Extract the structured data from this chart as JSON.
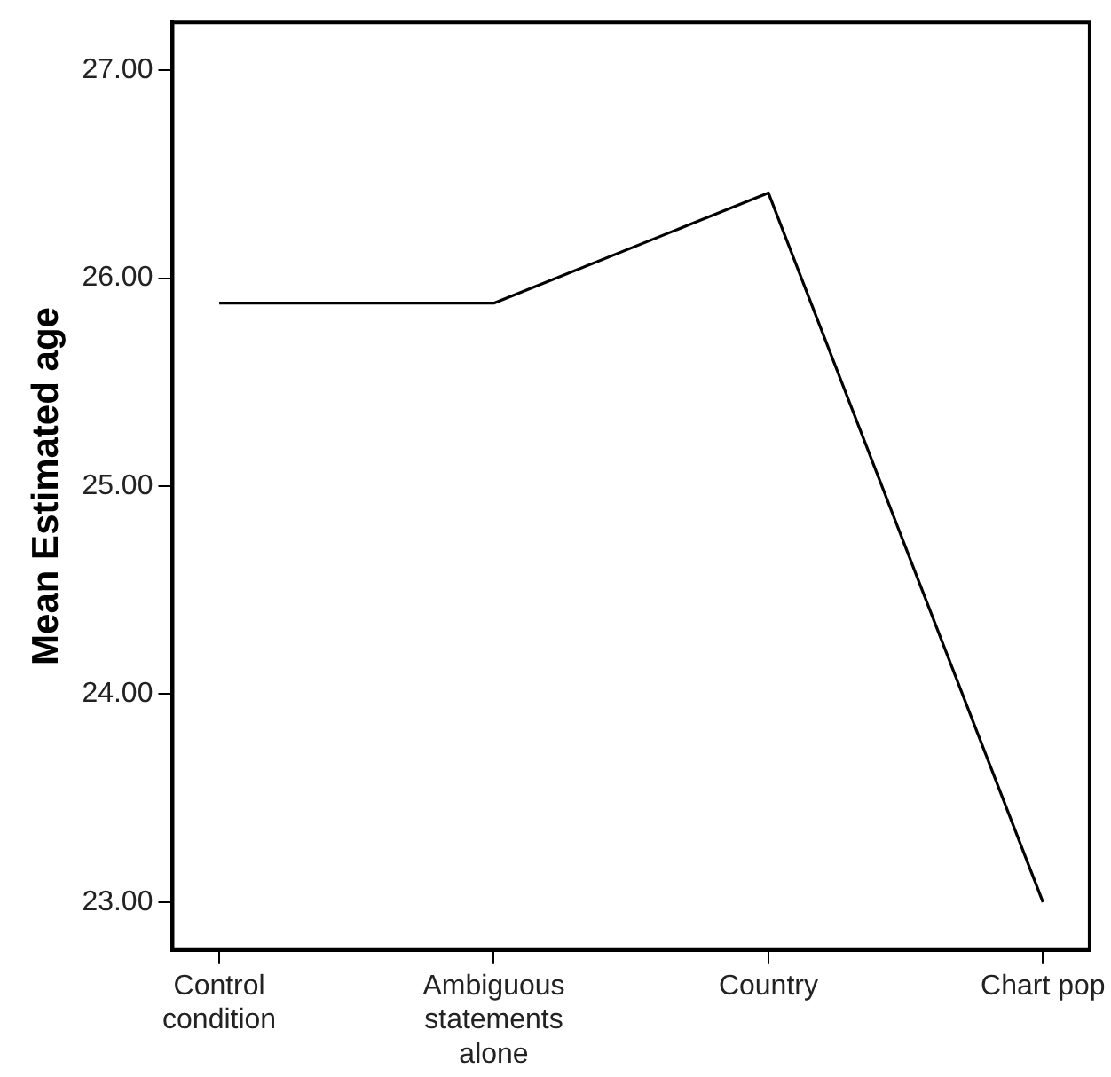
{
  "chart_data": {
    "type": "line",
    "ylabel": "Mean Estimated age",
    "categories": [
      "Control condition",
      "Ambiguous statements alone",
      "Country",
      "Chart pop"
    ],
    "series": [
      {
        "color": "#000000",
        "values": [
          25.88,
          25.88,
          26.41,
          23.0
        ]
      }
    ],
    "ylim": [
      22.77,
      27.23
    ],
    "yticks": [
      {
        "value": 23,
        "label": "23.00"
      },
      {
        "value": 24,
        "label": "24.00"
      },
      {
        "value": 25,
        "label": "25.00"
      },
      {
        "value": 26,
        "label": "26.00"
      },
      {
        "value": 27,
        "label": "27.00"
      }
    ],
    "grid": false,
    "legend": false,
    "marker": "none",
    "line_style": "solid"
  }
}
